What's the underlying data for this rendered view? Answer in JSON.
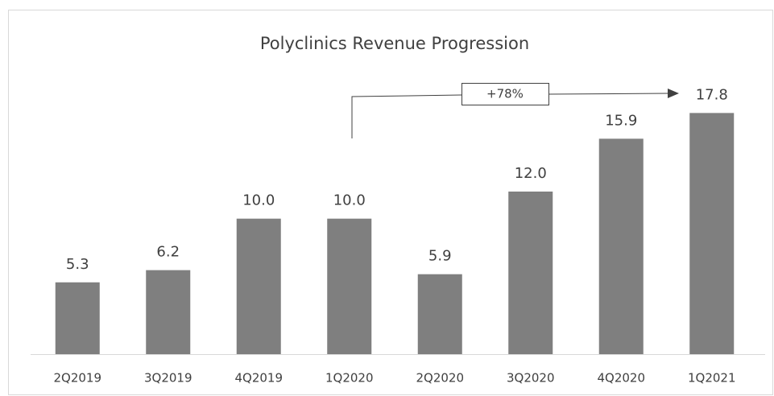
{
  "chart_data": {
    "type": "bar",
    "title": "Polyclinics Revenue Progression",
    "categories": [
      "2Q2019",
      "3Q2019",
      "4Q2019",
      "1Q2020",
      "2Q2020",
      "3Q2020",
      "4Q2020",
      "1Q2021"
    ],
    "values": [
      5.3,
      6.2,
      10.0,
      10.0,
      5.9,
      12.0,
      15.9,
      17.8
    ],
    "value_labels": [
      "5.3",
      "6.2",
      "10.0",
      "10.0",
      "5.9",
      "12.0",
      "15.9",
      "17.8"
    ],
    "color": "#7f7f7f",
    "ylim": [
      0,
      18
    ],
    "annotation": "+78%"
  }
}
